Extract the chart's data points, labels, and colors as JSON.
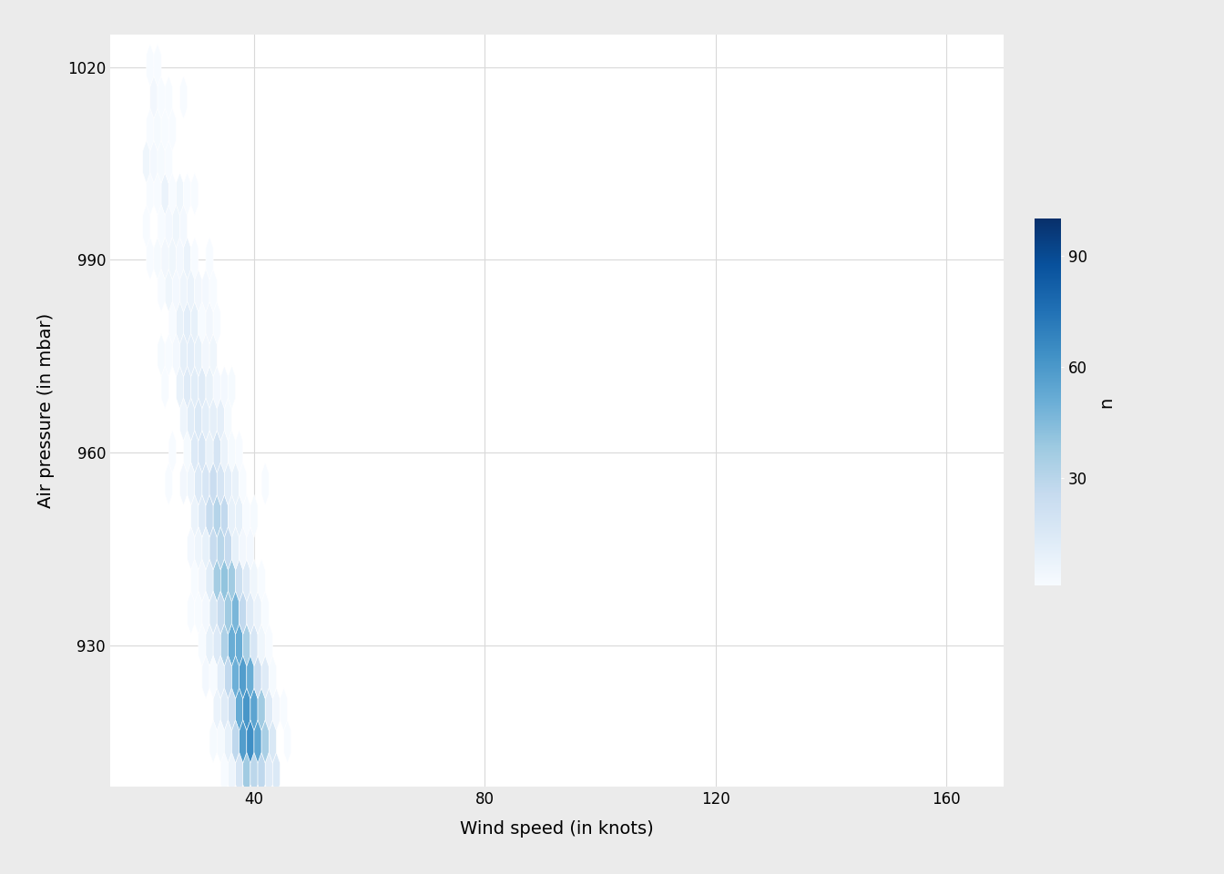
{
  "xlabel": "Wind speed (in knots)",
  "ylabel": "Air pressure (in mbar)",
  "colorbar_label": "n",
  "colorbar_ticks": [
    30,
    60,
    90
  ],
  "xlim": [
    15,
    170
  ],
  "ylim": [
    908,
    1025
  ],
  "xticks": [
    40,
    80,
    120,
    160
  ],
  "yticks": [
    930,
    960,
    990,
    1020
  ],
  "background_color": "#ebebeb",
  "plot_background": "#ffffff",
  "gridcolor": "#d9d9d9",
  "cmap": "Blues",
  "hexbin_gridsize": 20,
  "seed": 42,
  "vmin": 1,
  "vmax": 100
}
